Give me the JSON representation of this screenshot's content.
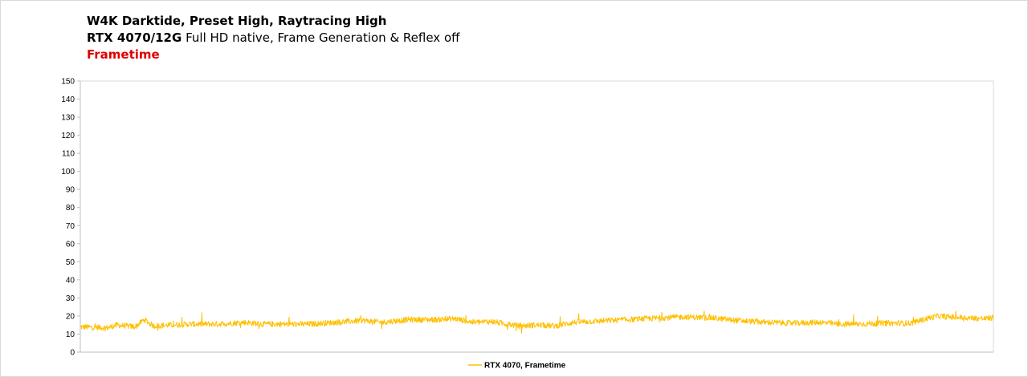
{
  "title_line1": "W4K Darktide, Preset High, Raytracing High",
  "title_line2_bold": "RTX 4070/12G",
  "title_line2_rest": "Full HD native, Frame Generation & Reflex off",
  "title_line3": "Frametime",
  "colors": {
    "series": "#ffc000",
    "title_accent": "#e00000",
    "axis": "#bfbfbf"
  },
  "chart_data": {
    "type": "line",
    "title": "Frametime",
    "ylim": [
      0,
      150
    ],
    "yticks": [
      0,
      10,
      20,
      30,
      40,
      50,
      60,
      70,
      80,
      90,
      100,
      110,
      120,
      130,
      140,
      150
    ],
    "grid": false,
    "legend": "bottom",
    "xlim": [
      0,
      100
    ],
    "series": [
      {
        "name": "RTX 4070, Frametime",
        "color": "#ffc000",
        "noise": 1.6,
        "x": [
          0,
          3,
          4,
          6,
          7,
          8,
          10,
          12,
          15,
          18,
          20,
          22,
          25,
          28,
          31,
          33,
          36,
          39,
          41,
          43,
          45,
          48,
          50,
          52,
          54,
          56,
          58,
          60,
          62,
          64,
          66,
          69,
          72,
          75,
          78,
          81,
          83,
          85,
          88,
          91,
          93,
          94,
          95,
          97,
          99,
          100
        ],
        "y": [
          14,
          13.5,
          15,
          14,
          18,
          14.5,
          15,
          15.5,
          15.5,
          16.5,
          15.5,
          15.5,
          15.5,
          16.5,
          17.5,
          16.5,
          18,
          18,
          18.5,
          16.5,
          17,
          14.5,
          15,
          14.5,
          16.5,
          17,
          17.5,
          18,
          18.5,
          19,
          19.5,
          19,
          17.5,
          16.5,
          16,
          16.5,
          15.5,
          15.5,
          16,
          16,
          19,
          20,
          19.5,
          19,
          18.5,
          19
        ]
      }
    ]
  }
}
